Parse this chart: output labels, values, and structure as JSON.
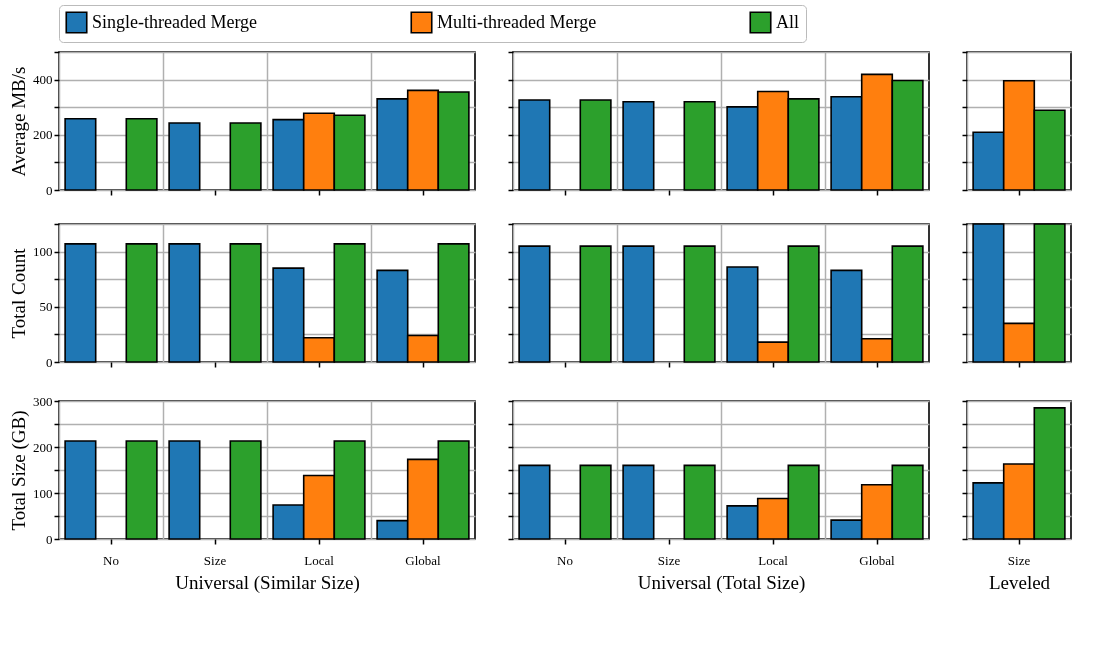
{
  "chart_data": [
    {
      "type": "bar",
      "categories": [
        "No",
        "Size",
        "Local",
        "Global"
      ],
      "ylabel": "Average MB/s",
      "ylim": [
        0,
        500
      ],
      "yticks": [
        0,
        {
          "value": 100,
          "label": null
        },
        200,
        {
          "value": 300,
          "label": null
        },
        400,
        {
          "value": 500,
          "label": null
        }
      ],
      "grid": true,
      "legend": "top",
      "tick_labels": "y",
      "series": [
        {
          "name": "Single-threaded Merge",
          "color": "#1f77b4",
          "values": [
            258,
            243,
            255,
            330
          ]
        },
        {
          "name": "Multi-threaded Merge",
          "color": "#ff7f0e",
          "values": [
            null,
            null,
            278,
            361
          ]
        },
        {
          "name": "All",
          "color": "#2ca02c",
          "values": [
            258,
            243,
            271,
            355
          ]
        }
      ]
    },
    {
      "type": "bar",
      "categories": [
        "No",
        "Size",
        "Local",
        "Global"
      ],
      "ylim": [
        0,
        500
      ],
      "yticks": [
        0,
        {
          "value": 100,
          "label": null
        },
        200,
        {
          "value": 300,
          "label": null
        },
        400,
        {
          "value": 500,
          "label": null
        }
      ],
      "grid": true,
      "tick_labels": false,
      "series": [
        {
          "name": "Single-threaded Merge",
          "color": "#1f77b4",
          "values": [
            326,
            320,
            301,
            338
          ]
        },
        {
          "name": "Multi-threaded Merge",
          "color": "#ff7f0e",
          "values": [
            null,
            null,
            357,
            419
          ]
        },
        {
          "name": "All",
          "color": "#2ca02c",
          "values": [
            326,
            320,
            330,
            397
          ]
        }
      ]
    },
    {
      "type": "bar",
      "categories": [
        "Size"
      ],
      "ylim": [
        0,
        500
      ],
      "yticks": [
        0,
        {
          "value": 100,
          "label": null
        },
        200,
        {
          "value": 300,
          "label": null
        },
        400,
        {
          "value": 500,
          "label": null
        }
      ],
      "grid": true,
      "tick_labels": false,
      "series": [
        {
          "name": "Single-threaded Merge",
          "color": "#1f77b4",
          "values": [
            209
          ]
        },
        {
          "name": "Multi-threaded Merge",
          "color": "#ff7f0e",
          "values": [
            396
          ]
        },
        {
          "name": "All",
          "color": "#2ca02c",
          "values": [
            289
          ]
        }
      ]
    },
    {
      "type": "bar",
      "categories": [
        "No",
        "Size",
        "Local",
        "Global"
      ],
      "ylabel": "Total Count",
      "ylim": [
        0,
        125
      ],
      "yticks": [
        0,
        {
          "value": 25,
          "label": null
        },
        50,
        {
          "value": 75,
          "label": null
        },
        100,
        {
          "value": 125,
          "label": null
        }
      ],
      "grid": true,
      "tick_labels": "y",
      "series": [
        {
          "name": "Single-threaded Merge",
          "color": "#1f77b4",
          "values": [
            107,
            107,
            85,
            83
          ]
        },
        {
          "name": "Multi-threaded Merge",
          "color": "#ff7f0e",
          "values": [
            null,
            null,
            22,
            24
          ]
        },
        {
          "name": "All",
          "color": "#2ca02c",
          "values": [
            107,
            107,
            107,
            107
          ]
        }
      ]
    },
    {
      "type": "bar",
      "categories": [
        "No",
        "Size",
        "Local",
        "Global"
      ],
      "ylim": [
        0,
        125
      ],
      "yticks": [
        0,
        {
          "value": 25,
          "label": null
        },
        50,
        {
          "value": 75,
          "label": null
        },
        100,
        {
          "value": 125,
          "label": null
        }
      ],
      "grid": true,
      "tick_labels": false,
      "series": [
        {
          "name": "Single-threaded Merge",
          "color": "#1f77b4",
          "values": [
            105,
            105,
            86,
            83
          ]
        },
        {
          "name": "Multi-threaded Merge",
          "color": "#ff7f0e",
          "values": [
            null,
            null,
            18,
            21
          ]
        },
        {
          "name": "All",
          "color": "#2ca02c",
          "values": [
            105,
            105,
            105,
            105
          ]
        }
      ]
    },
    {
      "type": "bar",
      "categories": [
        "Size"
      ],
      "ylim": [
        0,
        125
      ],
      "yticks": [
        0,
        {
          "value": 25,
          "label": null
        },
        50,
        {
          "value": 75,
          "label": null
        },
        100,
        {
          "value": 125,
          "label": null
        }
      ],
      "grid": true,
      "tick_labels": false,
      "series": [
        {
          "name": "Single-threaded Merge",
          "color": "#1f77b4",
          "values": [
            125
          ]
        },
        {
          "name": "Multi-threaded Merge",
          "color": "#ff7f0e",
          "values": [
            35
          ]
        },
        {
          "name": "All",
          "color": "#2ca02c",
          "values": [
            125
          ]
        }
      ]
    },
    {
      "type": "bar",
      "categories": [
        "No",
        "Size",
        "Local",
        "Global"
      ],
      "ylabel": "Total Size (GB)",
      "xlabel": "Universal (Similar Size)",
      "ylim": [
        0,
        300
      ],
      "yticks": [
        0,
        {
          "value": 50,
          "label": null
        },
        100,
        {
          "value": 150,
          "label": null
        },
        200,
        {
          "value": 250,
          "label": null
        },
        300
      ],
      "grid": true,
      "series": [
        {
          "name": "Single-threaded Merge",
          "color": "#1f77b4",
          "values": [
            213,
            213,
            74,
            40
          ]
        },
        {
          "name": "Multi-threaded Merge",
          "color": "#ff7f0e",
          "values": [
            null,
            null,
            138,
            173
          ]
        },
        {
          "name": "All",
          "color": "#2ca02c",
          "values": [
            213,
            213,
            213,
            213
          ]
        }
      ]
    },
    {
      "type": "bar",
      "categories": [
        "No",
        "Size",
        "Local",
        "Global"
      ],
      "xlabel": "Universal (Total Size)",
      "ylim": [
        0,
        300
      ],
      "yticks": [
        0,
        {
          "value": 50,
          "label": null
        },
        100,
        {
          "value": 150,
          "label": null
        },
        200,
        {
          "value": 250,
          "label": null
        },
        300
      ],
      "grid": true,
      "tick_labels": "x",
      "series": [
        {
          "name": "Single-threaded Merge",
          "color": "#1f77b4",
          "values": [
            160,
            160,
            72,
            41
          ]
        },
        {
          "name": "Multi-threaded Merge",
          "color": "#ff7f0e",
          "values": [
            null,
            null,
            88,
            118
          ]
        },
        {
          "name": "All",
          "color": "#2ca02c",
          "values": [
            160,
            160,
            160,
            160
          ]
        }
      ]
    },
    {
      "type": "bar",
      "categories": [
        "Size"
      ],
      "xlabel": "Leveled",
      "ylim": [
        0,
        300
      ],
      "yticks": [
        0,
        {
          "value": 50,
          "label": null
        },
        100,
        {
          "value": 150,
          "label": null
        },
        200,
        {
          "value": 250,
          "label": null
        },
        300
      ],
      "grid": true,
      "tick_labels": "x",
      "series": [
        {
          "name": "Single-threaded Merge",
          "color": "#1f77b4",
          "values": [
            122
          ]
        },
        {
          "name": "Multi-threaded Merge",
          "color": "#ff7f0e",
          "values": [
            163
          ]
        },
        {
          "name": "All",
          "color": "#2ca02c",
          "values": [
            285
          ]
        }
      ]
    }
  ]
}
